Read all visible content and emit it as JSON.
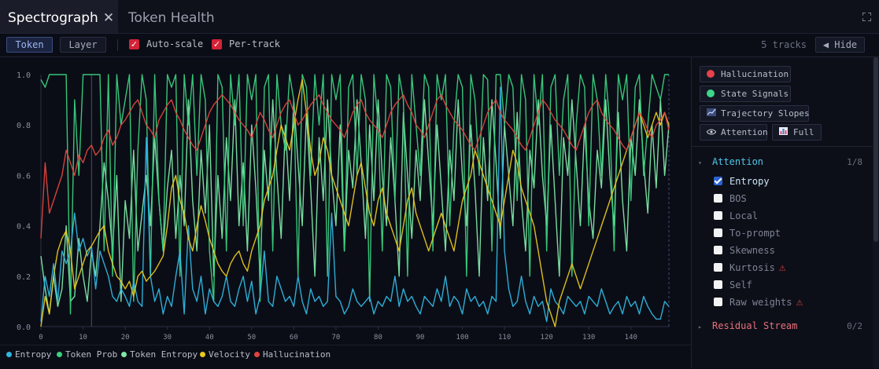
{
  "tabs": [
    {
      "label": "Spectrograph",
      "active": true
    },
    {
      "label": "Token Health",
      "active": false
    }
  ],
  "tab_close_glyph": "✕",
  "toolbar": {
    "mode_buttons": [
      {
        "label": "Token",
        "active": true
      },
      {
        "label": "Layer",
        "active": false
      }
    ],
    "checkboxes": [
      {
        "label": "Auto-scale",
        "checked": true
      },
      {
        "label": "Per-track",
        "checked": true
      }
    ],
    "tracks_count": "5 tracks",
    "hide_label": "◀ Hide"
  },
  "sidebar": {
    "buttons": [
      {
        "label": "Hallucination",
        "icon": "red-dot-icon",
        "color": "#e8424a"
      },
      {
        "label": "State Signals",
        "icon": "green-dot-icon",
        "color": "#3ed68a"
      },
      {
        "label": "Trajectory Slopes",
        "icon": "trend-chart-icon"
      },
      {
        "label": "Attention",
        "icon": "eye-icon"
      },
      {
        "label": "Full",
        "icon": "bar-chart-icon"
      }
    ],
    "sections": [
      {
        "title": "Attention",
        "count": "1/8",
        "expanded": true,
        "color": "#4fc4e8",
        "options": [
          {
            "label": "Entropy",
            "checked": true,
            "warn": false
          },
          {
            "label": "BOS",
            "checked": false,
            "warn": false
          },
          {
            "label": "Local",
            "checked": false,
            "warn": false
          },
          {
            "label": "To-prompt",
            "checked": false,
            "warn": false
          },
          {
            "label": "Skewness",
            "checked": false,
            "warn": false
          },
          {
            "label": "Kurtosis",
            "checked": false,
            "warn": true
          },
          {
            "label": "Self",
            "checked": false,
            "warn": false
          },
          {
            "label": "Raw weights",
            "checked": false,
            "warn": true
          }
        ]
      },
      {
        "title": "Residual Stream",
        "count": "0/2",
        "expanded": false,
        "color": "#e8707a"
      }
    ]
  },
  "chart_data": {
    "type": "line",
    "x": [
      0,
      1,
      2,
      3,
      4,
      5,
      6,
      7,
      8,
      9,
      10,
      11,
      12,
      13,
      14,
      15,
      16,
      17,
      18,
      19,
      20,
      21,
      22,
      23,
      24,
      25,
      26,
      27,
      28,
      29,
      30,
      31,
      32,
      33,
      34,
      35,
      36,
      37,
      38,
      39,
      40,
      41,
      42,
      43,
      44,
      45,
      46,
      47,
      48,
      49,
      50,
      51,
      52,
      53,
      54,
      55,
      56,
      57,
      58,
      59,
      60,
      61,
      62,
      63,
      64,
      65,
      66,
      67,
      68,
      69,
      70,
      71,
      72,
      73,
      74,
      75,
      76,
      77,
      78,
      79,
      80,
      81,
      82,
      83,
      84,
      85,
      86,
      87,
      88,
      89,
      90,
      91,
      92,
      93,
      94,
      95,
      96,
      97,
      98,
      99,
      100,
      101,
      102,
      103,
      104,
      105,
      106,
      107,
      108,
      109,
      110,
      111,
      112,
      113,
      114,
      115,
      116,
      117,
      118,
      119,
      120,
      121,
      122,
      123,
      124,
      125,
      126,
      127,
      128,
      129,
      130,
      131,
      132,
      133,
      134,
      135,
      136,
      137,
      138,
      139,
      140,
      141,
      142,
      143,
      144,
      145,
      146,
      147,
      148,
      149
    ],
    "xlim": [
      0,
      149
    ],
    "ylim": [
      0,
      1
    ],
    "x_ticks": [
      0,
      10,
      20,
      30,
      40,
      50,
      60,
      70,
      80,
      90,
      100,
      110,
      120,
      130,
      140
    ],
    "y_ticks": [
      0.0,
      0.2,
      0.4,
      0.6,
      0.8,
      1.0
    ],
    "y_tick_labels": [
      "0.0",
      "0.2",
      "0.4",
      "0.6",
      "0.8",
      "1.0"
    ],
    "vertical_markers": [
      12,
      149
    ],
    "grid": false,
    "legend_position": "bottom-left",
    "series": [
      {
        "name": "Entropy",
        "color": "#2fb6e0",
        "values": [
          0.02,
          0.2,
          0.12,
          0.25,
          0.1,
          0.3,
          0.25,
          0.3,
          0.45,
          0.3,
          0.35,
          0.28,
          0.32,
          0.15,
          0.3,
          0.25,
          0.2,
          0.12,
          0.1,
          0.15,
          0.12,
          0.08,
          0.18,
          0.1,
          0.08,
          0.75,
          0.2,
          0.1,
          0.15,
          0.05,
          0.12,
          0.08,
          0.2,
          0.3,
          0.05,
          0.4,
          0.15,
          0.1,
          0.2,
          0.05,
          0.15,
          0.1,
          0.08,
          0.12,
          0.2,
          0.1,
          0.08,
          0.15,
          0.2,
          0.1,
          0.18,
          0.05,
          0.12,
          0.3,
          0.1,
          0.08,
          0.2,
          0.15,
          0.1,
          0.12,
          0.08,
          0.2,
          0.1,
          0.05,
          0.15,
          0.1,
          0.12,
          0.08,
          0.1,
          0.45,
          0.12,
          0.1,
          0.05,
          0.08,
          0.15,
          0.1,
          0.08,
          0.1,
          0.12,
          0.05,
          0.1,
          0.08,
          0.12,
          0.1,
          0.2,
          0.08,
          0.15,
          0.1,
          0.12,
          0.08,
          0.05,
          0.12,
          0.1,
          0.08,
          0.15,
          0.1,
          0.2,
          0.08,
          0.12,
          0.1,
          0.05,
          0.15,
          0.1,
          0.12,
          0.08,
          0.1,
          0.05,
          0.12,
          0.1,
          0.95,
          0.3,
          0.15,
          0.08,
          0.1,
          0.2,
          0.1,
          0.05,
          0.12,
          0.08,
          0.1,
          0.02,
          0.15,
          0.1,
          0.08,
          0.05,
          0.12,
          0.1,
          0.08,
          0.1,
          0.05,
          0.12,
          0.1,
          0.08,
          0.15,
          0.1,
          0.05,
          0.08,
          0.1,
          0.05,
          0.12,
          0.08,
          0.1,
          0.05,
          0.12,
          0.08,
          0.05,
          0.03,
          0.03,
          0.1,
          0.08
        ]
      },
      {
        "name": "Token Prob",
        "color": "#3ad07e",
        "values": [
          0.98,
          0.95,
          1,
          1,
          1,
          1,
          1,
          0.05,
          0.9,
          0.6,
          1,
          1,
          1,
          1,
          1,
          0.3,
          1,
          0.2,
          1,
          0.8,
          0.9,
          1,
          0.1,
          0.7,
          1,
          0.9,
          0.2,
          1,
          0.5,
          0.3,
          1,
          0.95,
          1,
          0.2,
          1,
          0.8,
          1,
          0.6,
          1,
          0.9,
          0.3,
          0.1,
          1,
          0.95,
          0.3,
          1,
          0.8,
          1,
          0.4,
          1,
          0.9,
          1,
          0.1,
          0.95,
          1,
          0.3,
          1,
          0.8,
          0.7,
          1,
          0.9,
          0.2,
          1,
          0.95,
          0.6,
          1,
          0.8,
          1,
          0.2,
          1,
          0.9,
          1,
          0.3,
          0.95,
          1,
          0.6,
          1,
          0.9,
          0.1,
          1,
          0.8,
          0.3,
          1,
          0.95,
          0.5,
          1,
          0.9,
          0.2,
          1,
          0.8,
          0.6,
          1,
          0.95,
          0.3,
          1,
          0.9,
          1,
          0.4,
          0.8,
          1,
          0.95,
          0.2,
          1,
          0.9,
          0.6,
          1,
          0.98,
          0.3,
          1,
          1,
          0.8,
          1,
          0.95,
          0.5,
          1,
          0.9,
          0.2,
          1,
          0.8,
          1,
          0.3,
          0.95,
          1,
          0.6,
          0.9,
          1,
          0.2,
          0.8,
          1,
          0.95,
          0.4,
          1,
          0.9,
          0.6,
          1,
          0.8,
          0.3,
          1,
          0.9,
          1,
          0.5,
          0.95,
          1,
          0.6,
          0.8,
          1,
          0.95,
          0.9,
          1,
          1
        ]
      },
      {
        "name": "Token Entropy",
        "color": "#7ee8a8",
        "values": [
          0.28,
          0.15,
          0.05,
          0.2,
          0.08,
          0.15,
          0.4,
          0.1,
          0.12,
          0.35,
          0.2,
          0.1,
          0.3,
          0.2,
          0.4,
          0.65,
          0.5,
          0.3,
          0.6,
          0.1,
          0.5,
          0.35,
          0.7,
          0.3,
          0.45,
          0.6,
          0.4,
          0.75,
          0.5,
          0.3,
          0.55,
          0.7,
          0.35,
          0.6,
          0.4,
          0.9,
          0.5,
          0.3,
          0.7,
          0.45,
          0.8,
          0.2,
          0.6,
          0.35,
          0.75,
          0.5,
          0.9,
          0.4,
          0.65,
          0.3,
          0.8,
          0.55,
          0.2,
          0.7,
          0.5,
          0.9,
          0.6,
          0.35,
          0.8,
          0.5,
          0.9,
          0.65,
          0.4,
          0.85,
          0.55,
          0.2,
          0.75,
          0.5,
          0.9,
          0.6,
          0.4,
          0.8,
          0.3,
          0.7,
          0.55,
          0.9,
          0.65,
          0.35,
          0.8,
          0.5,
          0.9,
          0.6,
          0.4,
          0.75,
          0.5,
          0.2,
          0.85,
          0.6,
          0.35,
          0.7,
          0.5,
          0.9,
          0.65,
          0.4,
          0.8,
          0.55,
          0.3,
          0.7,
          0.5,
          0.9,
          0.6,
          0.4,
          0.8,
          0.55,
          0.2,
          0.75,
          0.5,
          0.9,
          0.65,
          0.35,
          0.8,
          0.6,
          0.4,
          0.85,
          0.5,
          0.3,
          0.7,
          0.55,
          0.9,
          0.6,
          0.4,
          0.8,
          0.5,
          0.2,
          0.75,
          0.6,
          0.9,
          0.65,
          0.4,
          0.8,
          0.5,
          0.35,
          0.7,
          0.55,
          0.9,
          0.6,
          0.4,
          0.85,
          0.5,
          0.3,
          0.75,
          0.6,
          0.9,
          0.65,
          0.45,
          0.8,
          0.55,
          0.9,
          0.6,
          0.8
        ]
      },
      {
        "name": "Velocity",
        "color": "#e8c81e",
        "values": [
          0.0,
          0.12,
          0.05,
          0.2,
          0.3,
          0.35,
          0.38,
          0.3,
          0.15,
          0.2,
          0.25,
          0.3,
          0.32,
          0.35,
          0.38,
          0.4,
          0.3,
          0.25,
          0.2,
          0.18,
          0.15,
          0.18,
          0.12,
          0.2,
          0.22,
          0.18,
          0.2,
          0.22,
          0.25,
          0.28,
          0.4,
          0.55,
          0.6,
          0.5,
          0.45,
          0.35,
          0.3,
          0.4,
          0.48,
          0.42,
          0.35,
          0.3,
          0.25,
          0.22,
          0.2,
          0.25,
          0.28,
          0.3,
          0.25,
          0.22,
          0.3,
          0.35,
          0.4,
          0.5,
          0.55,
          0.6,
          0.7,
          0.8,
          0.75,
          0.7,
          0.8,
          0.9,
          0.98,
          0.85,
          0.7,
          0.6,
          0.65,
          0.75,
          0.7,
          0.6,
          0.55,
          0.5,
          0.45,
          0.4,
          0.5,
          0.6,
          0.65,
          0.55,
          0.45,
          0.4,
          0.5,
          0.55,
          0.45,
          0.4,
          0.35,
          0.3,
          0.4,
          0.5,
          0.55,
          0.45,
          0.4,
          0.35,
          0.3,
          0.35,
          0.4,
          0.45,
          0.4,
          0.35,
          0.3,
          0.4,
          0.5,
          0.55,
          0.6,
          0.7,
          0.65,
          0.6,
          0.55,
          0.5,
          0.45,
          0.4,
          0.5,
          0.6,
          0.7,
          0.65,
          0.55,
          0.5,
          0.45,
          0.4,
          0.3,
          0.2,
          0.1,
          0.05,
          0.0,
          0.1,
          0.15,
          0.2,
          0.25,
          0.2,
          0.15,
          0.2,
          0.25,
          0.3,
          0.35,
          0.4,
          0.45,
          0.5,
          0.55,
          0.6,
          0.65,
          0.7,
          0.75,
          0.8,
          0.85,
          0.8,
          0.75,
          0.8,
          0.85,
          0.8,
          0.85,
          0.8
        ]
      },
      {
        "name": "Hallucination",
        "color": "#e0443e",
        "values": [
          0.35,
          0.65,
          0.45,
          0.5,
          0.55,
          0.6,
          0.7,
          0.65,
          0.6,
          0.68,
          0.65,
          0.7,
          0.72,
          0.68,
          0.7,
          0.75,
          0.78,
          0.72,
          0.75,
          0.8,
          0.82,
          0.85,
          0.88,
          0.9,
          0.85,
          0.8,
          0.78,
          0.75,
          0.82,
          0.85,
          0.88,
          0.9,
          0.85,
          0.82,
          0.78,
          0.75,
          0.72,
          0.7,
          0.75,
          0.8,
          0.85,
          0.88,
          0.9,
          0.92,
          0.9,
          0.88,
          0.85,
          0.82,
          0.8,
          0.78,
          0.75,
          0.8,
          0.85,
          0.82,
          0.78,
          0.75,
          0.8,
          0.85,
          0.88,
          0.9,
          0.85,
          0.8,
          0.82,
          0.85,
          0.88,
          0.9,
          0.92,
          0.88,
          0.85,
          0.82,
          0.8,
          0.78,
          0.75,
          0.8,
          0.85,
          0.88,
          0.9,
          0.85,
          0.82,
          0.8,
          0.78,
          0.75,
          0.8,
          0.85,
          0.88,
          0.9,
          0.92,
          0.88,
          0.85,
          0.8,
          0.78,
          0.75,
          0.8,
          0.85,
          0.9,
          0.92,
          0.88,
          0.85,
          0.82,
          0.8,
          0.78,
          0.75,
          0.72,
          0.7,
          0.75,
          0.8,
          0.85,
          0.88,
          0.9,
          0.85,
          0.82,
          0.8,
          0.78,
          0.75,
          0.72,
          0.7,
          0.75,
          0.8,
          0.85,
          0.9,
          0.88,
          0.85,
          0.82,
          0.8,
          0.78,
          0.75,
          0.72,
          0.7,
          0.75,
          0.8,
          0.85,
          0.88,
          0.9,
          0.85,
          0.82,
          0.8,
          0.78,
          0.75,
          0.72,
          0.7,
          0.75,
          0.8,
          0.85,
          0.82,
          0.78,
          0.75,
          0.8,
          0.82,
          0.85,
          0.78
        ]
      }
    ]
  }
}
